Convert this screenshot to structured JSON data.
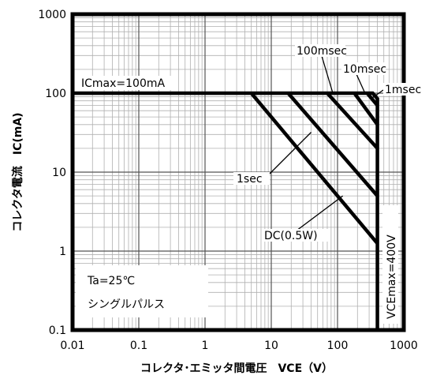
{
  "chart_data": {
    "type": "line",
    "xlabel": "コレクタ･エミッタ間電圧　VCE（V）",
    "ylabel": "コレクタ電流　IC(mA)",
    "x_scale": "log",
    "y_scale": "log",
    "xlim": [
      0.01,
      1000
    ],
    "ylim": [
      0.1,
      1000
    ],
    "x_ticks": [
      "0.01",
      "0.1",
      "1",
      "10",
      "100",
      "1000"
    ],
    "y_ticks": [
      "0.1",
      "1",
      "10",
      "100",
      "1000"
    ],
    "grid": true,
    "series": [
      {
        "name": "1msec",
        "x": [
          280,
          400
        ],
        "y": [
          100,
          70
        ]
      },
      {
        "name": "10msec",
        "x": [
          180,
          400
        ],
        "y": [
          100,
          40
        ]
      },
      {
        "name": "100msec",
        "x": [
          70,
          400
        ],
        "y": [
          100,
          20
        ]
      },
      {
        "name": "1sec",
        "x": [
          18,
          400
        ],
        "y": [
          100,
          5
        ]
      },
      {
        "name": "DC(0.5W)",
        "x": [
          5,
          400
        ],
        "y": [
          100,
          1.25
        ]
      }
    ],
    "limits": {
      "icmax_label": "ICmax=100mA",
      "icmax_value": 100,
      "vcemax_label": "VCEmax=400V",
      "vcemax_value": 400
    },
    "annotations": {
      "condition_1": "Ta=25℃",
      "condition_2": "シングルパルス"
    }
  }
}
